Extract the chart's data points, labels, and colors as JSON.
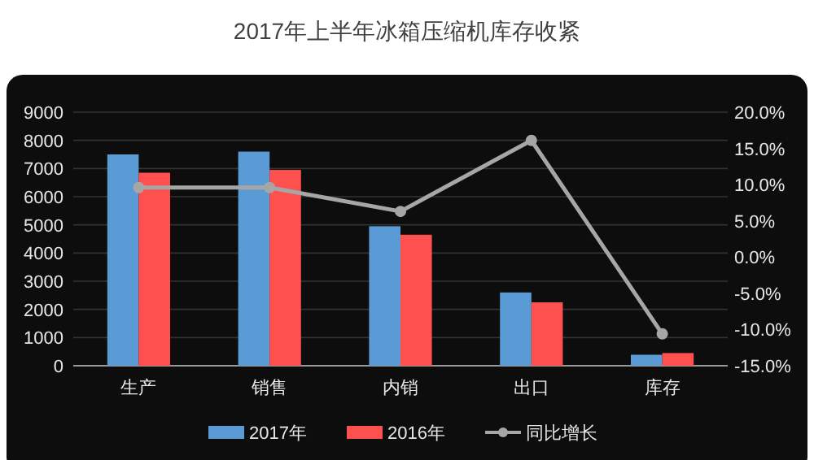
{
  "chart_data": {
    "type": "bar",
    "title": "2017年上半年冰箱压缩机库存收紧",
    "categories": [
      "生产",
      "销售",
      "内销",
      "出口",
      "库存"
    ],
    "series": [
      {
        "name": "2017年",
        "color": "#5b9bd5",
        "values": [
          7500,
          7600,
          4950,
          2600,
          390
        ]
      },
      {
        "name": "2016年",
        "color": "#ff5050",
        "values": [
          6850,
          6950,
          4650,
          2250,
          450
        ]
      },
      {
        "name": "同比增长",
        "type": "line",
        "axis": "y2",
        "color": "#a6a6a6",
        "marker": "circle",
        "values": [
          9.6,
          9.6,
          6.3,
          16.1,
          -10.6
        ]
      }
    ],
    "ylim": [
      0,
      9000
    ],
    "yticks": [
      0,
      1000,
      2000,
      3000,
      4000,
      5000,
      6000,
      7000,
      8000,
      9000
    ],
    "y2lim": [
      -15,
      20
    ],
    "y2ticks": [
      {
        "value": -15,
        "label": "-15.0%"
      },
      {
        "value": -10,
        "label": "-10.0%"
      },
      {
        "value": -5,
        "label": "-5.0%"
      },
      {
        "value": 0,
        "label": "0.0%"
      },
      {
        "value": 5,
        "label": "5.0%"
      },
      {
        "value": 10,
        "label": "10.0%"
      },
      {
        "value": 15,
        "label": "15.0%"
      },
      {
        "value": 20,
        "label": "20.0%"
      }
    ],
    "grid": "y",
    "legend": "bottom"
  }
}
